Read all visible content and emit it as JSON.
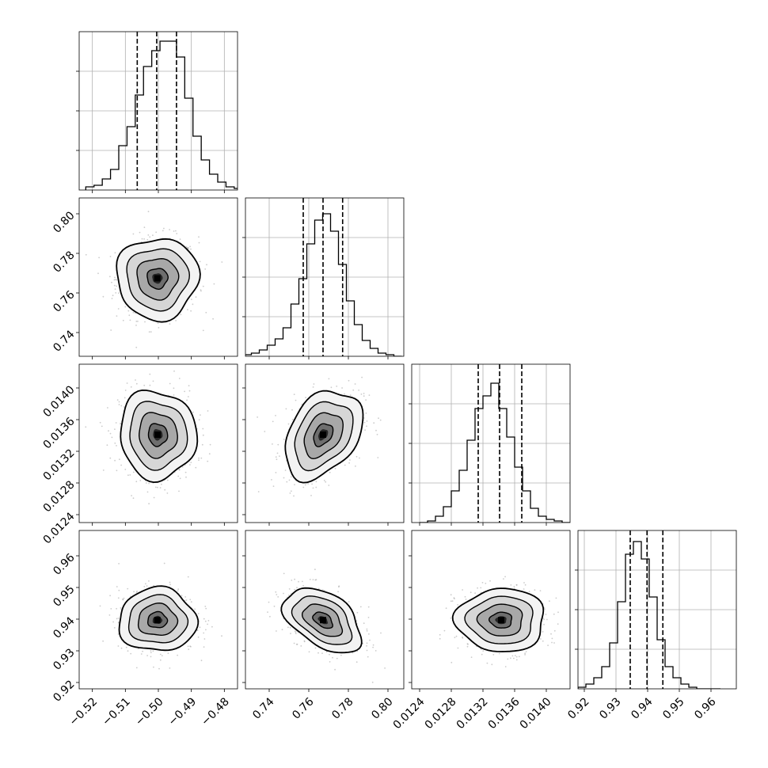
{
  "chart_data": {
    "type": "corner",
    "title": "",
    "parameters": [
      {
        "range": [
          -0.524,
          -0.476
        ],
        "ticks": [
          -0.52,
          -0.51,
          -0.5,
          -0.49,
          -0.48
        ],
        "tick_labels": [
          "−0.52",
          "−0.51",
          "−0.50",
          "−0.49",
          "−0.48"
        ],
        "hist_bins": [
          -0.522,
          -0.5195,
          -0.517,
          -0.5145,
          -0.512,
          -0.5095,
          -0.507,
          -0.5045,
          -0.502,
          -0.4995,
          -0.497,
          -0.4945,
          -0.492,
          -0.4895,
          -0.487,
          -0.4845,
          -0.482,
          -0.4795,
          -0.477
        ],
        "hist_counts": [
          0.02,
          0.03,
          0.07,
          0.13,
          0.28,
          0.4,
          0.6,
          0.78,
          0.88,
          0.94,
          0.94,
          0.84,
          0.58,
          0.34,
          0.19,
          0.1,
          0.05,
          0.02,
          0.01
        ],
        "quantiles": [
          -0.5064,
          -0.5005,
          -0.4945
        ]
      },
      {
        "range": [
          0.728,
          0.808
        ],
        "ticks": [
          0.74,
          0.76,
          0.78,
          0.8
        ],
        "tick_labels": [
          "0.74",
          "0.76",
          "0.78",
          "0.80"
        ],
        "hist_bins": [
          0.727,
          0.731,
          0.735,
          0.739,
          0.743,
          0.747,
          0.751,
          0.755,
          0.759,
          0.763,
          0.767,
          0.771,
          0.775,
          0.779,
          0.783,
          0.787,
          0.791,
          0.795,
          0.799,
          0.803,
          0.807
        ],
        "hist_counts": [
          0.01,
          0.02,
          0.04,
          0.07,
          0.11,
          0.18,
          0.33,
          0.49,
          0.71,
          0.86,
          0.9,
          0.79,
          0.58,
          0.35,
          0.2,
          0.1,
          0.05,
          0.02,
          0.01,
          0.0
        ],
        "quantiles": [
          0.7572,
          0.7672,
          0.7771
        ]
      },
      {
        "range": [
          0.0123,
          0.0143
        ],
        "ticks": [
          0.0124,
          0.0128,
          0.0132,
          0.0136,
          0.014
        ],
        "tick_labels": [
          "0.0124",
          "0.0128",
          "0.0132",
          "0.0136",
          "0.0140"
        ],
        "hist_bins": [
          0.0124,
          0.0125,
          0.0126,
          0.0127,
          0.0128,
          0.0129,
          0.013,
          0.0131,
          0.0132,
          0.0133,
          0.0134,
          0.0135,
          0.0136,
          0.0137,
          0.0138,
          0.0139,
          0.014,
          0.0141,
          0.0142,
          0.0143
        ],
        "hist_counts": [
          0.0,
          0.01,
          0.04,
          0.1,
          0.2,
          0.33,
          0.52,
          0.72,
          0.8,
          0.88,
          0.72,
          0.54,
          0.35,
          0.2,
          0.09,
          0.04,
          0.02,
          0.01,
          0.0
        ],
        "quantiles": [
          0.01314,
          0.01341,
          0.01369
        ]
      },
      {
        "range": [
          0.918,
          0.968
        ],
        "ticks": [
          0.92,
          0.93,
          0.94,
          0.95,
          0.96
        ],
        "tick_labels": [
          "0.92",
          "0.93",
          "0.94",
          "0.95",
          "0.96"
        ],
        "hist_bins": [
          0.918,
          0.9205,
          0.923,
          0.9255,
          0.928,
          0.9305,
          0.933,
          0.9355,
          0.938,
          0.9405,
          0.943,
          0.9455,
          0.948,
          0.9505,
          0.953,
          0.9555,
          0.958,
          0.9605,
          0.963
        ],
        "hist_counts": [
          0.01,
          0.03,
          0.07,
          0.14,
          0.29,
          0.55,
          0.85,
          0.93,
          0.82,
          0.58,
          0.31,
          0.14,
          0.07,
          0.03,
          0.01,
          0.0,
          0.0,
          0.0
        ],
        "quantiles": [
          0.9345,
          0.9398,
          0.9448
        ]
      }
    ],
    "joint": [
      {
        "row": 1,
        "col": 0,
        "center": [
          -0.5003,
          0.7674
        ],
        "std": [
          0.0062,
          0.0103
        ],
        "rho": 0.0
      },
      {
        "row": 2,
        "col": 0,
        "center": [
          -0.5002,
          0.01341
        ],
        "std": [
          0.0058,
          0.00028
        ],
        "rho": -0.05
      },
      {
        "row": 2,
        "col": 1,
        "center": [
          0.7672,
          0.01341
        ],
        "std": [
          0.0098,
          0.00028
        ],
        "rho": 0.35
      },
      {
        "row": 3,
        "col": 0,
        "center": [
          -0.5003,
          0.9397
        ],
        "std": [
          0.0059,
          0.005
        ],
        "rho": 0.0
      },
      {
        "row": 3,
        "col": 1,
        "center": [
          0.7672,
          0.9397
        ],
        "std": [
          0.0098,
          0.0051
        ],
        "rho": -0.45
      },
      {
        "row": 3,
        "col": 2,
        "center": [
          0.01343,
          0.9397
        ],
        "std": [
          0.00028,
          0.005
        ],
        "rho": 0.0
      }
    ],
    "contour_levels_sigma": [
      0.5,
      1.0,
      1.5,
      2.0
    ],
    "grid": true,
    "legend": "none",
    "colors": {
      "line": "#000000",
      "grid": "#b0b0b0",
      "scatter": "#9a9a9a"
    }
  }
}
